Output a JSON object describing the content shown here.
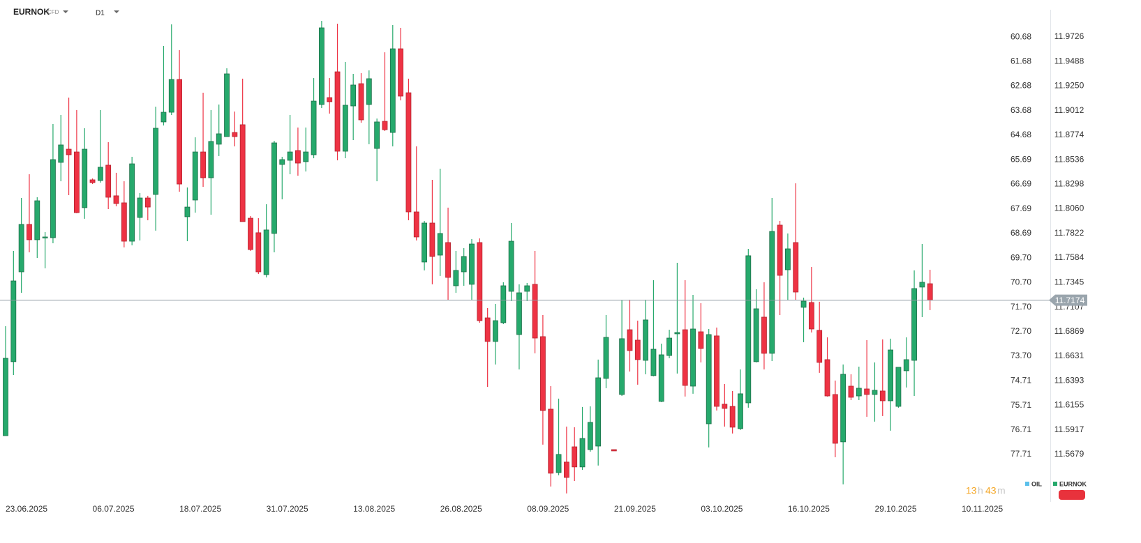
{
  "header": {
    "symbol": "EURNOK",
    "instrument_type": "CFD",
    "timeframe": "D1"
  },
  "countdown": {
    "hours": 13,
    "hour_unit": "h",
    "minutes": 43,
    "minute_unit": "m"
  },
  "chart_data": {
    "type": "candlestick",
    "categories": [
      "23.06.2025",
      null,
      null,
      null,
      null,
      null,
      null,
      null,
      null,
      null,
      null,
      "06.07.2025",
      null,
      null,
      null,
      null,
      null,
      null,
      null,
      null,
      null,
      null,
      "18.07.2025",
      null,
      null,
      null,
      null,
      null,
      null,
      null,
      null,
      null,
      null,
      "31.07.2025",
      null,
      null,
      null,
      null,
      null,
      null,
      null,
      null,
      null,
      null,
      "13.08.2025",
      null,
      null,
      null,
      null,
      null,
      null,
      null,
      null,
      null,
      null,
      "26.08.2025",
      null,
      null,
      null,
      null,
      null,
      null,
      null,
      null,
      null,
      null,
      "08.09.2025",
      null,
      null,
      null,
      null,
      null,
      null,
      null,
      null,
      null,
      null,
      "21.09.2025",
      null,
      null,
      null,
      null,
      null,
      null,
      null,
      null,
      null,
      null,
      "03.10.2025",
      null,
      null,
      null,
      null,
      null,
      null,
      null,
      null,
      null,
      null,
      "16.10.2025",
      null,
      null,
      null,
      null,
      null,
      null,
      null,
      null,
      null,
      null,
      "29.10.2025",
      null,
      null,
      null,
      null,
      null,
      null,
      null,
      null,
      null,
      null,
      "10.11.2025"
    ],
    "series": [
      {
        "name": "EURNOK",
        "color": "#26a96c",
        "up_color": "#26a96c",
        "down_color": "#ee3344",
        "open": [
          11.5861,
          11.6578,
          11.7449,
          11.7909,
          11.776,
          11.778,
          11.778,
          11.851,
          11.8638,
          11.8611,
          11.8071,
          11.8341,
          11.8334,
          11.8483,
          11.8186,
          11.8118,
          11.7746,
          11.7976,
          11.8165,
          11.8199,
          11.8902,
          11.8996,
          11.9314,
          11.7983,
          11.8145,
          11.8611,
          11.8361,
          11.8686,
          11.876,
          11.88,
          11.8875,
          11.7969,
          11.7828,
          11.7422,
          11.7821,
          11.849,
          11.853,
          11.8625,
          11.8517,
          11.8584,
          11.9071,
          11.9138,
          11.9388,
          11.8618,
          11.9057,
          11.9273,
          11.9071,
          11.8645,
          11.8908,
          11.88,
          11.9611,
          11.9185,
          11.803,
          11.7544,
          11.7922,
          11.7611,
          11.7733,
          11.7314,
          11.7449,
          11.7328,
          11.7733,
          11.7003,
          11.6774,
          11.6956,
          11.726,
          11.6841,
          11.726,
          11.7328,
          11.6821,
          11.6118,
          11.5503,
          11.5605,
          11.5753,
          11.5558,
          11.5726,
          11.576,
          11.6416,
          11.5726,
          11.626,
          11.6888,
          11.6787,
          11.6591,
          11.6443,
          11.6193,
          11.6638,
          11.6848,
          11.6888,
          11.6341,
          11.6868,
          11.5976,
          11.6828,
          11.6166,
          11.6145,
          11.5929,
          11.6179,
          11.6578,
          11.701,
          11.6659,
          11.7902,
          11.7469,
          11.7733,
          11.7105,
          11.7152,
          11.6882,
          11.6598,
          11.626,
          11.5801,
          11.6341,
          11.6246,
          11.6314,
          11.626,
          11.6294,
          11.6199,
          11.6145,
          11.649,
          11.6591,
          11.7301,
          11.7334,
          null,
          null,
          null,
          null
        ],
        "high": [
          11.6922,
          11.7652,
          11.8165,
          11.8395,
          11.8172,
          11.7834,
          11.8881,
          11.8969,
          11.9138,
          11.9017,
          11.8841,
          11.8354,
          11.9017,
          11.8706,
          11.8409,
          11.8327,
          11.8564,
          11.8213,
          11.8186,
          11.905,
          11.9638,
          11.9848,
          11.9598,
          11.8267,
          11.8753,
          11.9185,
          11.9017,
          11.9071,
          11.9422,
          11.9003,
          11.9321,
          11.799,
          11.7969,
          11.8104,
          11.8719,
          11.8564,
          11.8969,
          11.8848,
          11.8848,
          11.9327,
          11.9881,
          11.9327,
          11.9854,
          11.9483,
          11.9368,
          11.9375,
          11.9402,
          11.8935,
          11.9577,
          11.9841,
          11.9814,
          11.9321,
          11.8665,
          11.7942,
          11.8341,
          11.8449,
          11.8071,
          11.7652,
          11.7679,
          11.7767,
          11.7773,
          11.7098,
          11.7138,
          11.7348,
          11.7922,
          11.7328,
          11.7341,
          11.7652,
          11.703,
          11.6341,
          11.622,
          11.5949,
          11.5943,
          11.6139,
          11.6145,
          11.6598,
          11.703,
          11.5726,
          11.7179,
          11.7179,
          11.6976,
          11.7179,
          11.7368,
          11.6753,
          11.6888,
          11.7537,
          11.7368,
          11.7226,
          11.7145,
          11.6895,
          11.6909,
          11.6361,
          11.6294,
          11.6503,
          11.7672,
          11.728,
          11.7348,
          11.8165,
          11.7942,
          11.7821,
          11.8307,
          11.7199,
          11.7496,
          11.7159,
          11.6814,
          11.6395,
          11.6551,
          11.6456,
          11.653,
          11.6787,
          11.6571,
          11.6794,
          11.6801,
          11.6524,
          11.6814,
          11.7463,
          11.7719,
          11.7469,
          null,
          null,
          null,
          null
        ],
        "low": [
          11.5861,
          11.6449,
          11.7246,
          11.7638,
          11.7584,
          11.7483,
          11.7726,
          11.8327,
          11.8192,
          11.8017,
          11.7963,
          11.83,
          11.8314,
          11.8057,
          11.8084,
          11.7686,
          11.7706,
          11.7753,
          11.7949,
          11.7848,
          11.8868,
          11.8969,
          11.8226,
          11.7746,
          11.8023,
          11.8273,
          11.8003,
          11.8571,
          11.876,
          11.8665,
          11.7936,
          11.7652,
          11.7429,
          11.7395,
          11.7638,
          11.8152,
          11.8395,
          11.8381,
          11.8422,
          11.855,
          11.9037,
          11.8983,
          11.853,
          11.855,
          11.8726,
          11.8895,
          11.8686,
          11.8327,
          11.8814,
          11.8665,
          11.9111,
          11.7949,
          11.7753,
          11.7463,
          11.7328,
          11.7409,
          11.7179,
          11.7246,
          11.7314,
          11.7179,
          11.6956,
          11.6334,
          11.6551,
          11.6942,
          11.7165,
          11.6503,
          11.7165,
          11.6659,
          11.5774,
          11.5368,
          11.5477,
          11.5301,
          11.5422,
          11.553,
          11.5706,
          11.5571,
          11.6321,
          11.5713,
          11.6246,
          11.6483,
          11.6355,
          11.6456,
          11.6436,
          11.6186,
          11.6611,
          11.6463,
          11.624,
          11.6267,
          11.6571,
          11.5747,
          11.6105,
          11.5949,
          11.5882,
          11.5916,
          11.6132,
          11.6571,
          11.6503,
          11.6584,
          11.703,
          11.7172,
          11.7179,
          11.6767,
          11.6861,
          11.647,
          11.624,
          11.5652,
          11.5389,
          11.6206,
          11.6206,
          11.6044,
          11.5997,
          11.6051,
          11.5909,
          11.6132,
          11.6328,
          11.6246,
          11.701,
          11.7078,
          null,
          null,
          null,
          null
        ],
        "close": [
          11.6611,
          11.7361,
          11.7909,
          11.776,
          11.8138,
          11.7787,
          11.8537,
          11.8679,
          11.8584,
          11.8023,
          11.8638,
          11.8314,
          11.8463,
          11.8172,
          11.8111,
          11.7746,
          11.8496,
          11.8165,
          11.8077,
          11.8841,
          11.8996,
          11.9314,
          11.83,
          11.8077,
          11.8611,
          11.8361,
          11.8713,
          11.8787,
          11.9368,
          11.876,
          11.7936,
          11.7665,
          11.7449,
          11.7855,
          11.8699,
          11.8537,
          11.8611,
          11.8503,
          11.8611,
          11.9104,
          11.9814,
          11.9098,
          11.8618,
          11.9064,
          11.926,
          11.8922,
          11.9321,
          11.8902,
          11.8827,
          11.9611,
          11.9152,
          11.803,
          11.7787,
          11.7922,
          11.7598,
          11.7821,
          11.7395,
          11.7463,
          11.7598,
          11.7719,
          11.6976,
          11.6774,
          11.6976,
          11.7314,
          11.7746,
          11.7246,
          11.7314,
          11.6807,
          11.6105,
          11.5497,
          11.5679,
          11.5456,
          11.5558,
          11.5834,
          11.599,
          11.6422,
          11.6814,
          11.5713,
          11.6801,
          11.6686,
          11.6598,
          11.6983,
          11.6699,
          11.6645,
          11.6807,
          11.6861,
          11.6348,
          11.6895,
          11.6706,
          11.6841,
          11.6145,
          11.6125,
          11.5943,
          11.6267,
          11.7605,
          11.7091,
          11.6659,
          11.7841,
          11.7415,
          11.7672,
          11.7253,
          11.7165,
          11.6895,
          11.6571,
          11.6246,
          11.5787,
          11.6456,
          11.6233,
          11.6321,
          11.626,
          11.6301,
          11.6199,
          11.6692,
          11.6524,
          11.6598,
          11.7287,
          11.7348,
          11.7174,
          null,
          null,
          null,
          null
        ]
      },
      {
        "name": "OIL",
        "color": "#5bc0eb",
        "axis": "y2"
      }
    ],
    "ylim": [
      11.5253,
      12.0084
    ],
    "yticks": [
      11.9726,
      11.9488,
      {
        "value": 11.925,
        "label": "11.9250"
      },
      11.9012,
      11.8774,
      11.8536,
      11.8298,
      {
        "value": 11.806,
        "label": "11.8060"
      },
      11.7822,
      11.7584,
      11.7345,
      11.7107,
      11.6869,
      11.6631,
      11.6393,
      11.6155,
      11.5917,
      11.5679
    ],
    "y2lim": [
      79.5,
      59.17
    ],
    "y2ticks": [
      60.68,
      61.68,
      62.68,
      63.68,
      64.68,
      65.69,
      66.69,
      67.69,
      68.69,
      {
        "value": 69.7,
        "label": "69.70"
      },
      {
        "value": 70.7,
        "label": "70.70"
      },
      {
        "value": 71.7,
        "label": "71.70"
      },
      {
        "value": 72.7,
        "label": "72.70"
      },
      {
        "value": 73.7,
        "label": "73.70"
      },
      74.71,
      75.71,
      76.71,
      77.71
    ],
    "last_price": 11.7174,
    "grid": false
  }
}
